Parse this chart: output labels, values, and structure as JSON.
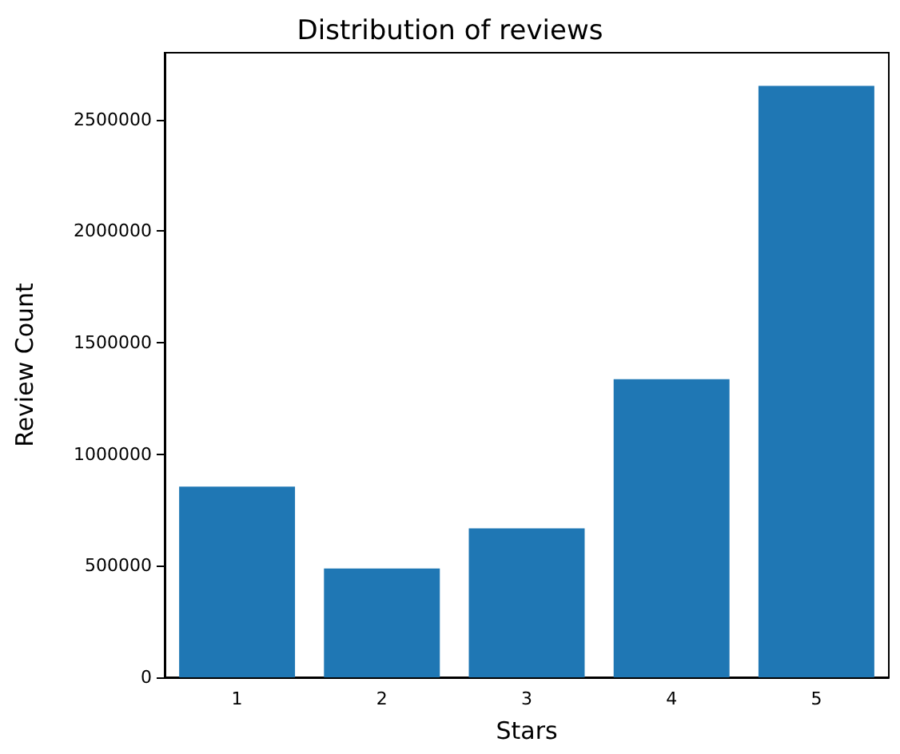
{
  "chart_data": {
    "type": "bar",
    "title": "Distribution of reviews",
    "xlabel": "Stars",
    "ylabel": "Review Count",
    "categories": [
      "1",
      "2",
      "3",
      "4",
      "5"
    ],
    "values": [
      855000,
      488000,
      668000,
      1336000,
      2651000
    ],
    "color": "#1f77b4",
    "ylim": [
      0,
      2800000
    ],
    "yticks": [
      0,
      500000,
      1000000,
      1500000,
      2000000,
      2500000
    ],
    "grid": false
  }
}
